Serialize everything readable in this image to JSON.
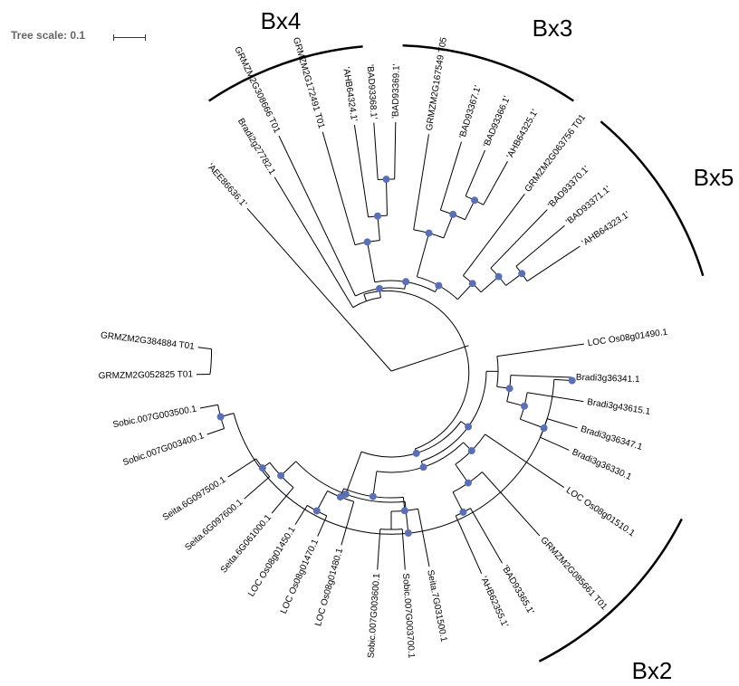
{
  "tree_scale": {
    "label": "Tree scale: 0.1"
  },
  "clades": [
    {
      "key": "bx4",
      "label": "Bx4"
    },
    {
      "key": "bx3",
      "label": "Bx3"
    },
    {
      "key": "bx5",
      "label": "Bx5"
    },
    {
      "key": "bx2",
      "label": "Bx2"
    }
  ],
  "leaves": [
    "'AEE86636.1'",
    "Bradi2g27782.1",
    "GRMZM2G308666 T01",
    "GRMZM2G172491 T01",
    "'AHB64324.1'",
    "'BAD93368.1'",
    "'BAD93369.1'",
    "GRMZM2G167549 T05",
    "'BAD93367.1'",
    "'BAD93366.1'",
    "'AHB64325.1'",
    "GRMZM2G063756 T01",
    "'BAD93370.1'",
    "'BAD93371.1'",
    "'AHB64323.1'",
    "LOC Os08g01490.1",
    "Bradi3g36341.1",
    "Bradi3g43615.1",
    "Bradi3g36347.1",
    "Bradi3g36330.1",
    "LOC Os08g01510.1",
    "GRMZM2G085661 T01",
    "'BAD93365.1'",
    "'AHB62355.1'",
    "Seita.7G031500.1",
    "Sobic.007G003700.1",
    "Sobic.007G003600.1",
    "LOC Os08g01480.1",
    "LOC Os08g01470.1",
    "LOC Os08g01450.1",
    "Seita.6G061000.1",
    "Seita.6G097600.1",
    "Seita.6G097500.1",
    "Sobic.007G003400.1",
    "Sobic.007G003500.1",
    "GRMZM2G052825 T01",
    "GRMZM2G384884 T01"
  ]
}
